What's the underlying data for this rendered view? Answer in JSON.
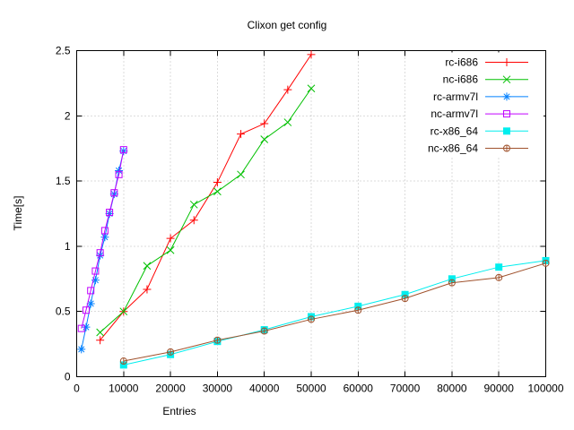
{
  "chart_data": {
    "type": "line",
    "title": "Clixon get config",
    "xlabel": "Entries",
    "ylabel": "Time[s]",
    "xlim": [
      0,
      100000
    ],
    "ylim": [
      0,
      2.5
    ],
    "xticks": [
      0,
      10000,
      20000,
      30000,
      40000,
      50000,
      60000,
      70000,
      80000,
      90000,
      100000
    ],
    "xtick_labels": [
      "0",
      "10000",
      "20000",
      "30000",
      "40000",
      "50000",
      "60000",
      "70000",
      "80000",
      "90000",
      "100000"
    ],
    "yticks": [
      0,
      0.5,
      1,
      1.5,
      2,
      2.5
    ],
    "ytick_labels": [
      "0",
      "0.5",
      "1",
      "1.5",
      "2",
      "2.5"
    ],
    "grid": true,
    "grid_color": "#b8b8b8",
    "border_color": "#000000",
    "legend_position": "top-right-inside",
    "series": [
      {
        "name": "rc-i686",
        "color": "#ff0000",
        "marker": "plus",
        "x": [
          5000,
          10000,
          15000,
          20000,
          25000,
          30000,
          35000,
          40000,
          45000,
          50000
        ],
        "y": [
          0.28,
          0.5,
          0.67,
          1.06,
          1.2,
          1.49,
          1.86,
          1.94,
          2.2,
          2.47
        ]
      },
      {
        "name": "nc-i686",
        "color": "#00c000",
        "marker": "cross",
        "x": [
          5000,
          10000,
          15000,
          20000,
          25000,
          30000,
          35000,
          40000,
          45000,
          50000
        ],
        "y": [
          0.34,
          0.5,
          0.85,
          0.97,
          1.32,
          1.42,
          1.55,
          1.82,
          1.95,
          2.21
        ]
      },
      {
        "name": "rc-armv7l",
        "color": "#0080ff",
        "marker": "asterisk",
        "x": [
          1000,
          2000,
          3000,
          4000,
          5000,
          6000,
          7000,
          8000,
          9000,
          10000
        ],
        "y": [
          0.21,
          0.38,
          0.56,
          0.74,
          0.93,
          1.07,
          1.25,
          1.4,
          1.58,
          1.73
        ]
      },
      {
        "name": "nc-armv7l",
        "color": "#c000ff",
        "marker": "square-open",
        "x": [
          1000,
          2000,
          3000,
          4000,
          5000,
          6000,
          7000,
          8000,
          9000,
          10000
        ],
        "y": [
          0.37,
          0.51,
          0.66,
          0.81,
          0.95,
          1.12,
          1.26,
          1.41,
          1.55,
          1.74
        ]
      },
      {
        "name": "rc-x86_64",
        "color": "#00eeee",
        "marker": "square-filled",
        "x": [
          10000,
          20000,
          30000,
          40000,
          50000,
          60000,
          70000,
          80000,
          90000,
          100000
        ],
        "y": [
          0.09,
          0.17,
          0.27,
          0.36,
          0.46,
          0.54,
          0.63,
          0.75,
          0.84,
          0.89
        ]
      },
      {
        "name": "nc-x86_64",
        "color": "#a0522d",
        "marker": "circle-open",
        "x": [
          10000,
          20000,
          30000,
          40000,
          50000,
          60000,
          70000,
          80000,
          90000,
          100000
        ],
        "y": [
          0.12,
          0.19,
          0.28,
          0.35,
          0.44,
          0.51,
          0.6,
          0.72,
          0.76,
          0.87
        ]
      }
    ]
  }
}
